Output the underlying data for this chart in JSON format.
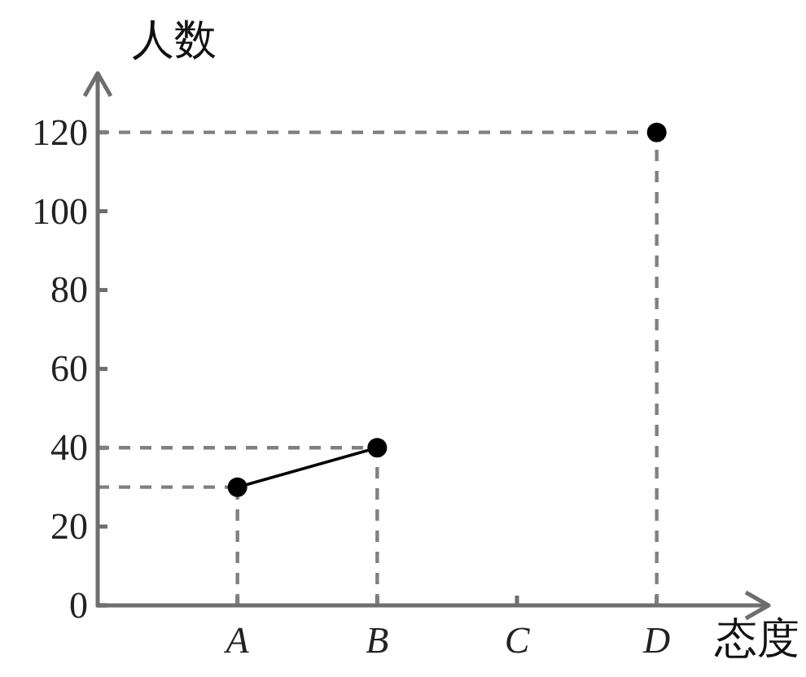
{
  "chart_data": {
    "type": "line",
    "xlabel": "态度",
    "ylabel": "人数",
    "categories": [
      "A",
      "B",
      "C",
      "D"
    ],
    "series": [
      {
        "color": "#000000",
        "values": [
          30,
          40,
          null,
          120
        ]
      }
    ],
    "ylim": [
      0,
      135
    ],
    "yticks": [
      0,
      20,
      40,
      60,
      80,
      100,
      120
    ],
    "marker": "circle",
    "line_style": "solid",
    "ref_lines": [
      {
        "axis": "y",
        "value": 30,
        "color": "#808080",
        "line_style": "dashed"
      },
      {
        "axis": "y",
        "value": 40,
        "color": "#808080",
        "line_style": "dashed"
      },
      {
        "axis": "y",
        "value": 120,
        "color": "#808080",
        "line_style": "dashed"
      },
      {
        "axis": "x",
        "value": "A",
        "color": "#808080",
        "line_style": "dashed"
      },
      {
        "axis": "x",
        "value": "B",
        "color": "#808080",
        "line_style": "dashed"
      },
      {
        "axis": "x",
        "value": "D",
        "color": "#808080",
        "line_style": "dashed"
      }
    ]
  }
}
